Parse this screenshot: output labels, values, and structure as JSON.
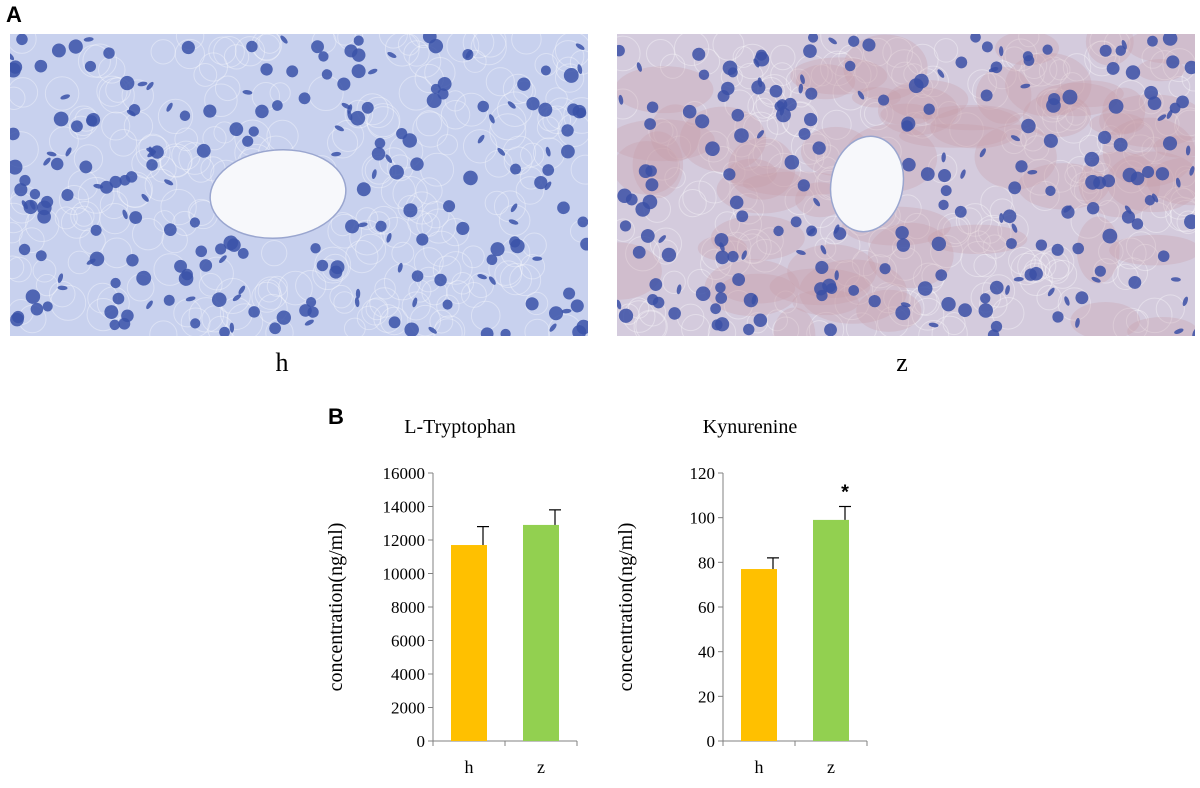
{
  "figure": {
    "panel_a_letter": "A",
    "panel_b_letter": "B"
  },
  "micrographs": [
    {
      "id": "h",
      "label": "h",
      "tissue_color": "#c8d1ee",
      "nucleus_color": "#3a52a8",
      "stain_color": null
    },
    {
      "id": "z",
      "label": "z",
      "tissue_color": "#d4cbdd",
      "nucleus_color": "#3b50a6",
      "stain_color": "#c49aa6"
    }
  ],
  "colors": {
    "bar_h": "#ffc000",
    "bar_z": "#92d050",
    "axis": "#808080"
  },
  "chart_data": [
    {
      "type": "bar",
      "title": "L-Tryptophan",
      "ylabel": "concentration(ng/ml)",
      "categories": [
        "h",
        "z"
      ],
      "values": [
        11700,
        12900
      ],
      "errors": [
        1100,
        900
      ],
      "ylim": [
        0,
        16000
      ],
      "yticks": [
        0,
        2000,
        4000,
        6000,
        8000,
        10000,
        12000,
        14000,
        16000
      ],
      "annotations": [
        "",
        ""
      ]
    },
    {
      "type": "bar",
      "title": "Kynurenine",
      "ylabel": "concentration(ng/ml)",
      "categories": [
        "h",
        "z"
      ],
      "values": [
        77,
        99
      ],
      "errors": [
        5,
        6
      ],
      "ylim": [
        0,
        120
      ],
      "yticks": [
        0,
        20,
        40,
        60,
        80,
        100,
        120
      ],
      "annotations": [
        "",
        "*"
      ]
    }
  ]
}
